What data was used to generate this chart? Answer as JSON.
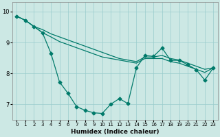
{
  "xlabel": "Humidex (Indice chaleur)",
  "bg_color": "#cce8e4",
  "grid_color": "#99cccc",
  "line_color": "#007a6a",
  "xlim": [
    -0.5,
    23.5
  ],
  "ylim": [
    6.5,
    10.3
  ],
  "yticks": [
    7,
    8,
    9,
    10
  ],
  "xticks": [
    0,
    1,
    2,
    3,
    4,
    5,
    6,
    7,
    8,
    9,
    10,
    11,
    12,
    13,
    14,
    15,
    16,
    17,
    18,
    19,
    20,
    21,
    22,
    23
  ],
  "line1_x": [
    0,
    1,
    2,
    3,
    4,
    5,
    6,
    7,
    8,
    9,
    10,
    11,
    12,
    13,
    14,
    15,
    16,
    17,
    18,
    19,
    20,
    21,
    22,
    23
  ],
  "line1_y": [
    9.85,
    9.72,
    9.52,
    9.32,
    8.65,
    7.72,
    7.35,
    6.92,
    6.8,
    6.72,
    6.7,
    7.0,
    7.18,
    7.02,
    8.18,
    8.58,
    8.55,
    8.82,
    8.42,
    8.42,
    8.28,
    8.12,
    7.78,
    8.18
  ],
  "line2_x": [
    0,
    1,
    2,
    3,
    4,
    5,
    6,
    7,
    8,
    9,
    10,
    11,
    12,
    13,
    14,
    15,
    16,
    17,
    18,
    19,
    20,
    21,
    22,
    23
  ],
  "line2_y": [
    9.85,
    9.72,
    9.52,
    9.42,
    9.28,
    9.18,
    9.08,
    8.98,
    8.88,
    8.78,
    8.68,
    8.58,
    8.48,
    8.43,
    8.38,
    8.53,
    8.53,
    8.58,
    8.48,
    8.43,
    8.33,
    8.23,
    8.13,
    8.18
  ],
  "line3_x": [
    0,
    1,
    2,
    3,
    4,
    5,
    6,
    7,
    8,
    9,
    10,
    11,
    12,
    13,
    14,
    15,
    16,
    17,
    18,
    19,
    20,
    21,
    22,
    23
  ],
  "line3_y": [
    9.85,
    9.72,
    9.52,
    9.32,
    9.18,
    9.03,
    8.93,
    8.83,
    8.73,
    8.63,
    8.53,
    8.48,
    8.43,
    8.38,
    8.33,
    8.48,
    8.48,
    8.48,
    8.38,
    8.33,
    8.23,
    8.13,
    8.03,
    8.18
  ]
}
